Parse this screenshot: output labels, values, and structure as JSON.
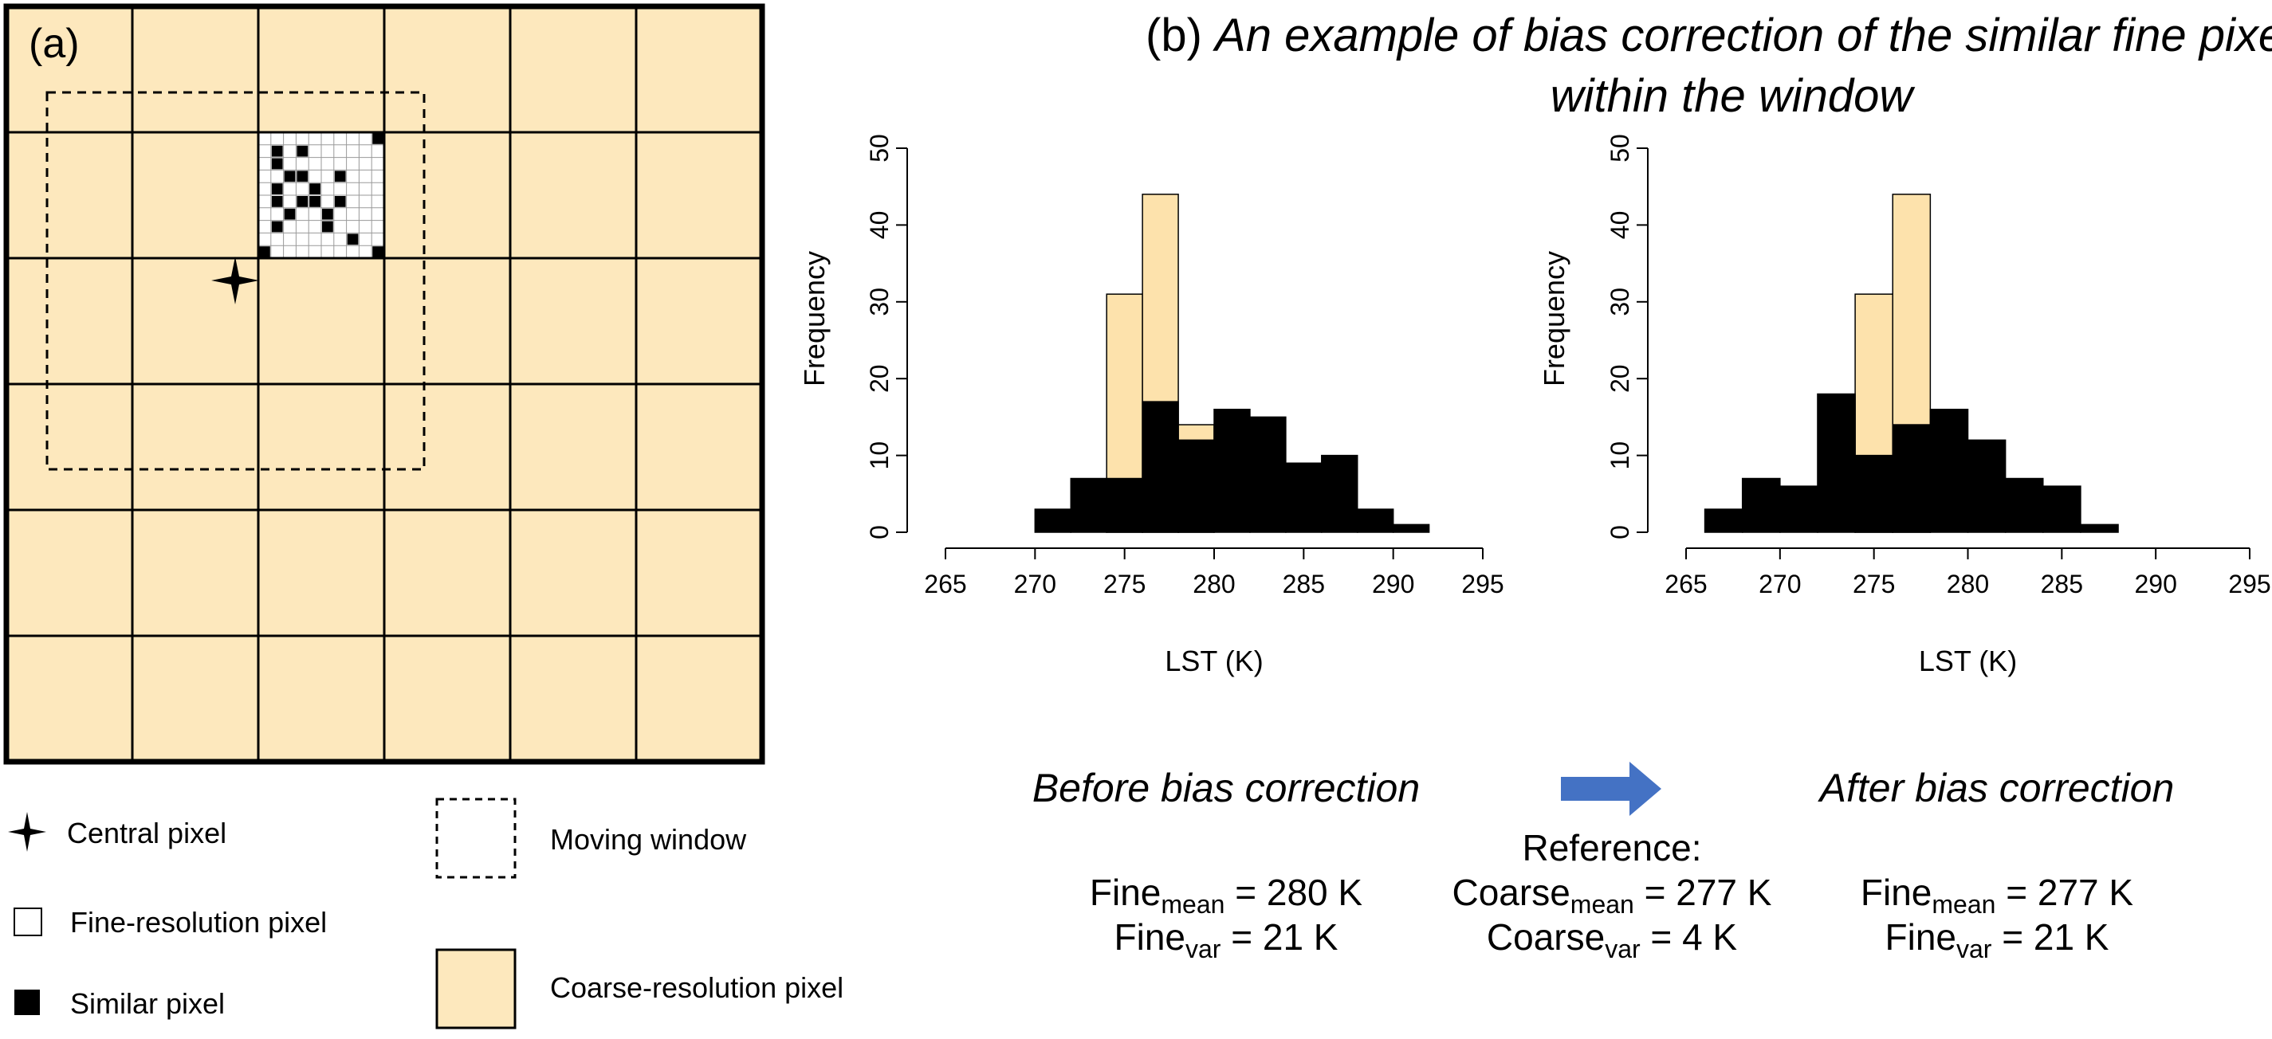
{
  "panel_a": {
    "label": "(a)",
    "colors": {
      "coarse_fill": "#fde8bd",
      "grid_line": "#000000",
      "fine_grid_line": "#9a9a9a",
      "fine_fill": "#ffffff",
      "similar": "#000000"
    },
    "coarse_grid": {
      "rows": 6,
      "cols": 6
    },
    "moving_window": "dashed square around central pixel",
    "fine_block": {
      "rows": 10,
      "cols": 10,
      "similar_cells": [
        [
          1,
          1
        ],
        [
          1,
          3
        ],
        [
          0,
          9
        ],
        [
          2,
          1
        ],
        [
          3,
          3
        ],
        [
          3,
          2
        ],
        [
          3,
          6
        ],
        [
          4,
          1
        ],
        [
          4,
          4
        ],
        [
          5,
          1
        ],
        [
          5,
          3
        ],
        [
          5,
          4
        ],
        [
          5,
          6
        ],
        [
          6,
          2
        ],
        [
          6,
          5
        ],
        [
          7,
          1
        ],
        [
          7,
          5
        ],
        [
          8,
          7
        ],
        [
          9,
          0
        ],
        [
          9,
          9
        ]
      ]
    }
  },
  "legend": {
    "central_pixel": "Central pixel",
    "fine_pixel": "Fine-resolution pixel",
    "similar_pixel": "Similar pixel",
    "moving_window": "Moving window",
    "coarse_pixel": "Coarse-resolution pixel"
  },
  "panel_b": {
    "label": "(b)",
    "title_line1": "An example of bias correction of the similar fine pixels",
    "title_line2": "within the window"
  },
  "chart_data": [
    {
      "type": "bar",
      "subtype": "overlaid-histogram",
      "ylabel": "Frequency",
      "xlabel": "LST (K)",
      "xlim": [
        265,
        295
      ],
      "ylim": [
        0,
        50
      ],
      "x_ticks": [
        "265",
        "270",
        "275",
        "280",
        "285",
        "290",
        "295"
      ],
      "y_ticks": [
        "0",
        "10",
        "20",
        "30",
        "40",
        "50"
      ],
      "bin_width": 2,
      "series": [
        {
          "color": "#fde2ac",
          "bins": [
            [
              274,
              31
            ],
            [
              276,
              44
            ],
            [
              278,
              14
            ]
          ]
        },
        {
          "color": "#000000",
          "bins": [
            [
              270,
              3
            ],
            [
              272,
              7
            ],
            [
              274,
              7
            ],
            [
              276,
              17
            ],
            [
              278,
              12
            ],
            [
              280,
              16
            ],
            [
              282,
              15
            ],
            [
              284,
              9
            ],
            [
              286,
              10
            ],
            [
              288,
              3
            ],
            [
              290,
              1
            ]
          ]
        }
      ]
    },
    {
      "type": "bar",
      "subtype": "overlaid-histogram",
      "ylabel": "Frequency",
      "xlabel": "LST (K)",
      "xlim": [
        265,
        295
      ],
      "ylim": [
        0,
        50
      ],
      "x_ticks": [
        "265",
        "270",
        "275",
        "280",
        "285",
        "290",
        "295"
      ],
      "y_ticks": [
        "0",
        "10",
        "20",
        "30",
        "40",
        "50"
      ],
      "bin_width": 2,
      "series": [
        {
          "color": "#fde2ac",
          "bins": [
            [
              274,
              31
            ],
            [
              276,
              44
            ]
          ]
        },
        {
          "color": "#000000",
          "bins": [
            [
              266,
              3
            ],
            [
              268,
              7
            ],
            [
              270,
              6
            ],
            [
              272,
              18
            ],
            [
              274,
              10
            ],
            [
              276,
              14
            ],
            [
              278,
              16
            ],
            [
              280,
              12
            ],
            [
              282,
              7
            ],
            [
              284,
              6
            ],
            [
              286,
              1
            ]
          ]
        }
      ]
    }
  ],
  "bottom": {
    "before_label": "Before bias correction",
    "after_label": "After bias correction",
    "arrow_color": "#4472c4",
    "reference_label": "Reference:",
    "before_mean": {
      "base": "Fine",
      "sub": "mean",
      "value": " = 280 K"
    },
    "before_var": {
      "base": "Fine",
      "sub": "var",
      "value": " = 21 K"
    },
    "ref_mean": {
      "base": "Coarse",
      "sub": "mean",
      "value": " = 277 K"
    },
    "ref_var": {
      "base": "Coarse",
      "sub": "var",
      "value": " = 4 K"
    },
    "after_mean": {
      "base": "Fine",
      "sub": "mean",
      "value": " = 277 K"
    },
    "after_var": {
      "base": "Fine",
      "sub": "var",
      "value": " = 21 K"
    }
  }
}
